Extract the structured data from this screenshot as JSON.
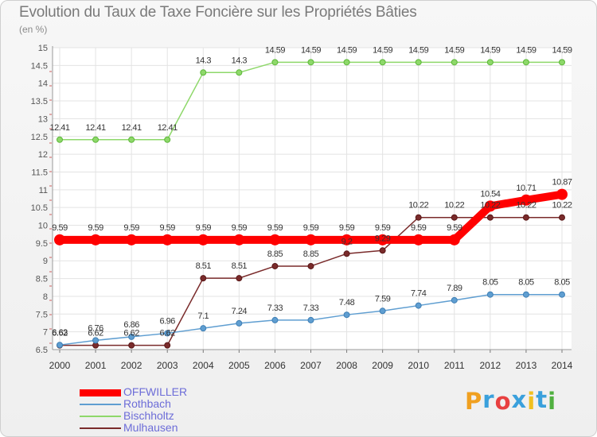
{
  "chart_data": {
    "type": "line",
    "title": "Evolution du Taux de Taxe Foncière sur les Propriétés Bâties",
    "subtitle": "(en %)",
    "xlabel": "",
    "ylabel": "(en %)",
    "x": [
      "2000",
      "2001",
      "2002",
      "2003",
      "2004",
      "2005",
      "2006",
      "2007",
      "2008",
      "2009",
      "2010",
      "2011",
      "2012",
      "2013",
      "2014"
    ],
    "ylim": [
      6.5,
      15
    ],
    "yticks": [
      "6.5",
      "7",
      "7.5",
      "8",
      "8.5",
      "9",
      "9.5",
      "10",
      "10.5",
      "11",
      "11.5",
      "12",
      "12.5",
      "13",
      "13.5",
      "14",
      "14.5",
      "15"
    ],
    "grid": true,
    "legend_position": "bottom-left",
    "series": [
      {
        "name": "OFFWILLER",
        "color": "#ff0000",
        "values": [
          9.59,
          9.59,
          9.59,
          9.59,
          9.59,
          9.59,
          9.59,
          9.59,
          9.59,
          9.59,
          9.59,
          9.59,
          10.54,
          10.71,
          10.87
        ],
        "labels": [
          "9.59",
          "9.59",
          "9.59",
          "9.59",
          "9.59",
          "9.59",
          "9.59",
          "9.59",
          "9.59",
          "9.59",
          "9.59",
          "9.59",
          "10.54",
          "10.71",
          "10.87"
        ]
      },
      {
        "name": "Rothbach",
        "color": "#5f9ed1",
        "values": [
          6.63,
          6.76,
          6.86,
          6.96,
          7.1,
          7.24,
          7.33,
          7.33,
          7.48,
          7.59,
          7.74,
          7.89,
          8.05,
          8.05,
          8.05
        ],
        "labels": [
          "6.63",
          "6.76",
          "6.86",
          "6.96",
          "7.1",
          "7.24",
          "7.33",
          "7.33",
          "7.48",
          "7.59",
          "7.74",
          "7.89",
          "8.05",
          "8.05",
          "8.05"
        ]
      },
      {
        "name": "Bischholtz",
        "color": "#8ed86a",
        "values": [
          12.41,
          12.41,
          12.41,
          12.41,
          14.3,
          14.3,
          14.59,
          14.59,
          14.59,
          14.59,
          14.59,
          14.59,
          14.59,
          14.59,
          14.59
        ],
        "labels": [
          "12.41",
          "12.41",
          "12.41",
          "12.41",
          "14.3",
          "14.3",
          "14.59",
          "14.59",
          "14.59",
          "14.59",
          "14.59",
          "14.59",
          "14.59",
          "14.59",
          "14.59"
        ]
      },
      {
        "name": "Mulhausen",
        "color": "#7a2b2b",
        "values": [
          6.62,
          6.62,
          6.62,
          6.62,
          8.51,
          8.51,
          8.85,
          8.85,
          9.2,
          9.29,
          10.22,
          10.22,
          10.22,
          10.22,
          10.22
        ],
        "labels": [
          "6.62",
          "6.62",
          "6.62",
          "6.62",
          "8.51",
          "8.51",
          "8.85",
          "8.85",
          "9.2",
          "9.29",
          "10.22",
          "10.22",
          "10.22",
          "10.22",
          "10.22"
        ]
      }
    ]
  },
  "logo": {
    "letters": [
      "P",
      "r",
      "o",
      "x",
      "i",
      "t",
      "i"
    ],
    "colors": [
      "#f0a020",
      "#3aa0dc",
      "#e84040",
      "#3aa0dc",
      "#f0c020",
      "#3aa0dc",
      "#50b040"
    ]
  }
}
